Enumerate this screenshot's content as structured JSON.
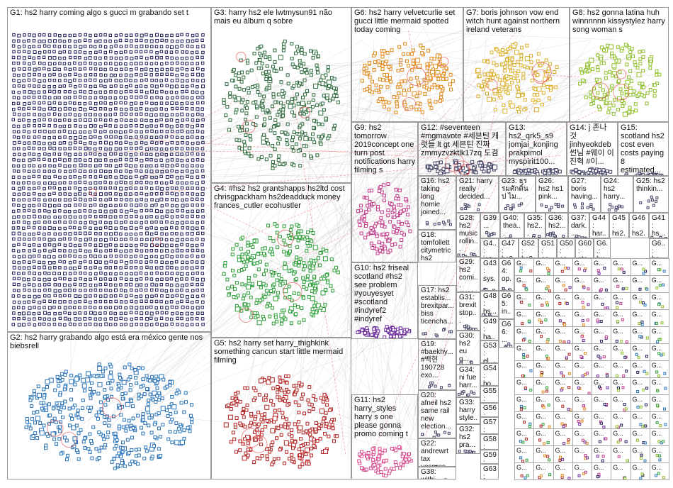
{
  "graph_title": "",
  "colors": {
    "G1": "#1f1f5a",
    "G2": "#2a74b8",
    "G3": "#2f6b3e",
    "G4": "#2e9e3a",
    "G5": "#b22424",
    "G6": "#e08a1c",
    "G7": "#d9b02c",
    "G8": "#8fbf2a",
    "G9": "#c23c8a",
    "G10": "#6a2a9a",
    "G11": "#d94d8f",
    "tiny": "#444466",
    "edge": "#b8b8b8",
    "edge_red": "#e23a3a"
  },
  "groups": [
    {
      "id": "G1",
      "label": "G1: hs2 harry coming algo s gucci m grabando set t"
    },
    {
      "id": "G2",
      "label": "G2: hs2 harry grabando algo está era méxico gente nos biebsrell"
    },
    {
      "id": "G3",
      "label": "G3: harry hs2 ele lwtmysun91 não mais eu álbum q sobre"
    },
    {
      "id": "G4",
      "label": "G4: #hs2 hs2 grantshapps hs2ltd cost chrisgpackham hs2deadduck money frances_cutler ecohustler"
    },
    {
      "id": "G5",
      "label": "G5: hs2 harry set harry_thighkink something cancun start little mermaid filming"
    },
    {
      "id": "G6",
      "label": "G6: hs2 harry velvetcurlie set gucci little mermaid spotted today coming"
    },
    {
      "id": "G7",
      "label": "G7: boris johnson vow end witch hunt against northern ireland veterans"
    },
    {
      "id": "G8",
      "label": "G8: hs2 gonna latina huh winnnnnn kissystylez harry song woman s"
    },
    {
      "id": "G9",
      "label": "G9: hs2 tomorrow 2019concept one turn post notifications harry filming s"
    },
    {
      "id": "G12",
      "label": "G12: #seventeen #mgmavote #세븐틴 캐럿들 lt gt 세븐틴 진짜 zmmyzvzktlk17zq 도겸"
    },
    {
      "id": "G13",
      "label": "G13: hs2_qrk5_s9 jomjai_konjing prakpimol myspirit100..."
    },
    {
      "id": "G14",
      "label": "G14: j 존나 것 jinhyeokdeb 썬님 #웨이 이진혁 #이..."
    },
    {
      "id": "G15",
      "label": "G15: scotland hs2 cost even costs paying 8 estimated..."
    },
    {
      "id": "G16",
      "label": "G16: hs2 taking long homie joined..."
    },
    {
      "id": "G21",
      "label": "G21: harry really decided..."
    },
    {
      "id": "G23",
      "label": "G23: ธรรมศักดิ์น ป ไม..."
    },
    {
      "id": "G26",
      "label": "G26: hs2 hs1 pink..."
    },
    {
      "id": "G27",
      "label": "G27: boris having..."
    },
    {
      "id": "G24",
      "label": "G24: hs2 harry..."
    },
    {
      "id": "G25",
      "label": "G25: hs2 thinkin..."
    },
    {
      "id": "G18",
      "label": "G18: tomfollett citymetric hs2 garethde..."
    },
    {
      "id": "G28",
      "label": "G28: hs2 music rollin..."
    },
    {
      "id": "G39",
      "label": "G39 ..."
    },
    {
      "id": "G40",
      "label": "G40: thea..."
    },
    {
      "id": "G35",
      "label": "G35: hs2..."
    },
    {
      "id": "G36",
      "label": "G36: hs2..."
    },
    {
      "id": "G37",
      "label": "G37: dark..."
    },
    {
      "id": "G44",
      "label": "G44: har..."
    },
    {
      "id": "G45",
      "label": "G45: hs2..."
    },
    {
      "id": "G46",
      "label": "G46: hs2..."
    },
    {
      "id": "G41",
      "label": "G41: hs..."
    },
    {
      "id": "G42",
      "label": "G4..: jer..."
    },
    {
      "id": "G47",
      "label": "G47: hs2..."
    },
    {
      "id": "G52",
      "label": "G52: hs2..."
    },
    {
      "id": "G51",
      "label": "G51: co..."
    },
    {
      "id": "G50",
      "label": "G50: co..."
    },
    {
      "id": "G60",
      "label": "G60: sta..."
    },
    {
      "id": "G61",
      "label": "G6..: bu..."
    },
    {
      "id": "G62",
      "label": "G6..: hs..."
    },
    {
      "id": "G29",
      "label": "G29: hs2 comi... gucc..."
    },
    {
      "id": "G10",
      "label": "G10: hs2 friseal scotland #hs2 see problem #youyesyet #scotland #indyref2 #indyref"
    },
    {
      "id": "G17",
      "label": "G17: hs2 establis... brexitpar... biss ticencha..."
    },
    {
      "id": "G31",
      "label": "G31: brexit stop..."
    },
    {
      "id": "G19",
      "label": "G19: #baekhy... #백현 190728 exo..."
    },
    {
      "id": "G30",
      "label": "G30: hs2 eu q..."
    },
    {
      "id": "G34",
      "label": "G34: ni fue harr..."
    },
    {
      "id": "G20",
      "label": "G20: afneil hs2 same rail new election..."
    },
    {
      "id": "G33",
      "label": "G33: harry style..."
    },
    {
      "id": "G11",
      "label": "G11: hs2 harry_styles harry s one please gonna promo coming t"
    },
    {
      "id": "G32",
      "label": "G32: hs2 pra..."
    },
    {
      "id": "G22",
      "label": "G22: andrewrt tax yespres..."
    },
    {
      "id": "G38",
      "label": "G38: withi..."
    },
    {
      "id": "G43",
      "label": "G43: sys..."
    },
    {
      "id": "G48",
      "label": "G48: hs..."
    },
    {
      "id": "G49",
      "label": "G49: ha..."
    },
    {
      "id": "G53",
      "label": "G53: el..."
    },
    {
      "id": "G54",
      "label": "G54: ho..."
    },
    {
      "id": "G55",
      "label": "G55: uk..."
    },
    {
      "id": "G56",
      "label": "G56: ea..."
    },
    {
      "id": "G57",
      "label": "G57: pa..."
    },
    {
      "id": "G58",
      "label": "G58: will..."
    },
    {
      "id": "G59",
      "label": "G59: me..."
    },
    {
      "id": "G63",
      "label": "G63: sek..."
    },
    {
      "id": "G64",
      "label": "G64: op..."
    },
    {
      "id": "G65",
      "label": "G65: in..."
    },
    {
      "id": "G66",
      "label": "G66: ..."
    }
  ],
  "tiny_cell_label": "G..."
}
